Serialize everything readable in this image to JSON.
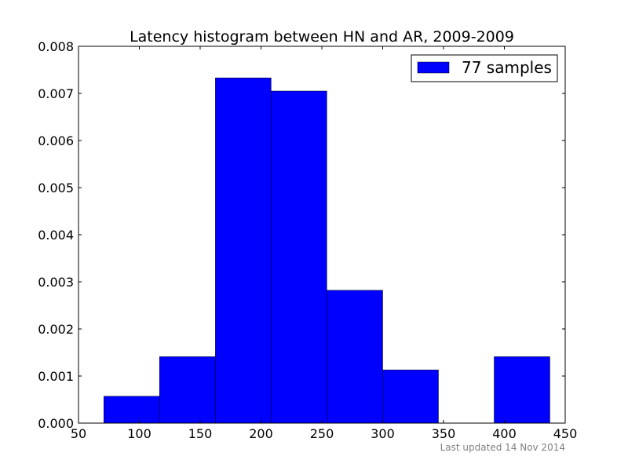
{
  "chart_data": {
    "type": "bar",
    "title": "Latency histogram between HN and AR, 2009-2009",
    "xlabel": "",
    "ylabel": "",
    "xlim": [
      50,
      450
    ],
    "ylim": [
      0,
      0.008
    ],
    "x_ticks": [
      50,
      100,
      150,
      200,
      250,
      300,
      350,
      400,
      450
    ],
    "y_ticks": [
      0.0,
      0.001,
      0.002,
      0.003,
      0.004,
      0.005,
      0.006,
      0.007,
      0.008
    ],
    "x_tick_labels": [
      "50",
      "100",
      "150",
      "200",
      "250",
      "300",
      "350",
      "400",
      "450"
    ],
    "y_tick_labels": [
      "0.000",
      "0.001",
      "0.002",
      "0.003",
      "0.004",
      "0.005",
      "0.006",
      "0.007",
      "0.008"
    ],
    "bins": [
      {
        "x0": 70.8,
        "x1": 116.6,
        "value": 0.00057
      },
      {
        "x0": 116.6,
        "x1": 162.5,
        "value": 0.00141
      },
      {
        "x0": 162.5,
        "x1": 208.3,
        "value": 0.00733
      },
      {
        "x0": 208.3,
        "x1": 254.1,
        "value": 0.00705
      },
      {
        "x0": 254.1,
        "x1": 300.0,
        "value": 0.00282
      },
      {
        "x0": 300.0,
        "x1": 345.8,
        "value": 0.00113
      },
      {
        "x0": 345.8,
        "x1": 391.6,
        "value": 0.0
      },
      {
        "x0": 391.6,
        "x1": 437.4,
        "value": 0.00141
      }
    ],
    "series": [
      {
        "name": "77 samples",
        "color": "#0000ff"
      }
    ],
    "legend_position": "top-right",
    "grid": false
  },
  "footer": {
    "updated_text": "Last updated 14 Nov 2014"
  }
}
